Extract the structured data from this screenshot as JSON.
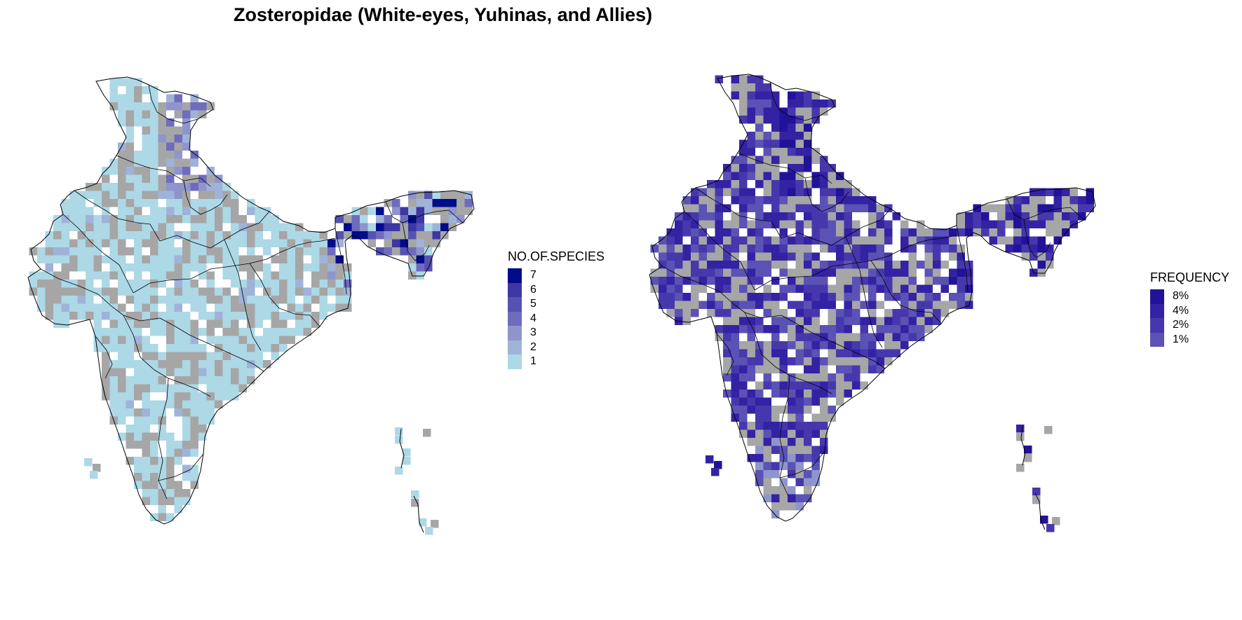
{
  "title": "Zosteropidae (White-eyes, Yuhinas, and Allies)",
  "colors": {
    "no_data": "#a6a6a6",
    "border": "#000000",
    "species_scale": [
      "#add8e6",
      "#9fb3d9",
      "#8f95cc",
      "#6f6cbe",
      "#5552b1",
      "#3d36a3",
      "#000c8b"
    ],
    "frequency_scale": [
      "#5a52b5",
      "#4638ac",
      "#3422a4",
      "#211399"
    ]
  },
  "left_map": {
    "legend": {
      "title": "NO.OF.SPECIES",
      "items": [
        {
          "label": "7",
          "color": "#000c8b"
        },
        {
          "label": "6",
          "color": "#3d36a3"
        },
        {
          "label": "5",
          "color": "#5552b1"
        },
        {
          "label": "4",
          "color": "#6f6cbe"
        },
        {
          "label": "3",
          "color": "#8f95cc"
        },
        {
          "label": "2",
          "color": "#9fb3d9"
        },
        {
          "label": "1",
          "color": "#add8e6"
        }
      ]
    }
  },
  "right_map": {
    "legend": {
      "title": "FREQUENCY",
      "items": [
        {
          "label": "8%",
          "color": "#211399"
        },
        {
          "label": "4%",
          "color": "#3422a4"
        },
        {
          "label": "2%",
          "color": "#4638ac"
        },
        {
          "label": "1%",
          "color": "#5a52b5"
        }
      ]
    }
  }
}
